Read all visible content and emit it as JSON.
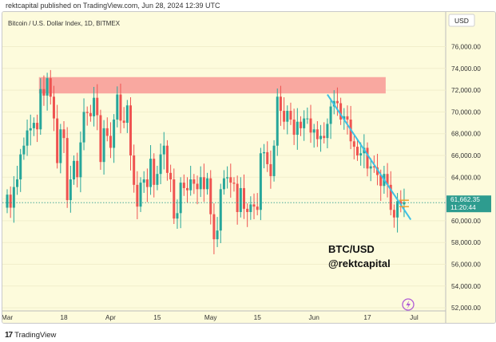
{
  "header": {
    "text": "rektcapital published on TradingView.com, Jun 28, 2024 12:39 UTC"
  },
  "chart_data": {
    "type": "candlestick",
    "title": "Bitcoin / U.S. Dollar Index, 1D, BITMEX",
    "currency_label": "USD",
    "ylim": [
      51500,
      78800
    ],
    "y_ticks": [
      52000,
      54000,
      56000,
      58000,
      60000,
      62000,
      64000,
      66000,
      68000,
      70000,
      72000,
      74000,
      76000
    ],
    "y_tick_labels": [
      "52,000.00",
      "54,000.00",
      "56,000.00",
      "58,000.00",
      "60,000.00",
      "62,000.00",
      "64,000.00",
      "66,000.00",
      "68,000.00",
      "70,000.00",
      "72,000.00",
      "74,000.00",
      "76,000.00"
    ],
    "x_ticks": [
      {
        "label": "Mar",
        "date": "2024-03-01"
      },
      {
        "label": "18",
        "date": "2024-03-18"
      },
      {
        "label": "Apr",
        "date": "2024-04-01"
      },
      {
        "label": "15",
        "date": "2024-04-15"
      },
      {
        "label": "May",
        "date": "2024-05-01"
      },
      {
        "label": "15",
        "date": "2024-05-15"
      },
      {
        "label": "Jun",
        "date": "2024-06-01"
      },
      {
        "label": "17",
        "date": "2024-06-17"
      },
      {
        "label": "Jul",
        "date": "2024-07-01"
      }
    ],
    "start_date": "2024-03-01",
    "closes": [
      62400,
      61200,
      63100,
      63800,
      66100,
      66900,
      68300,
      68500,
      69000,
      68400,
      72100,
      71500,
      73100,
      71400,
      69400,
      65300,
      68400,
      67600,
      61900,
      63800,
      65500,
      64000,
      67200,
      70000,
      69900,
      69600,
      71300,
      69700,
      65400,
      68500,
      67800,
      66700,
      69300,
      71600,
      69200,
      69000,
      70600,
      66000,
      63300,
      61300,
      63500,
      63800,
      63100,
      65700,
      63300,
      64300,
      66100,
      66900,
      64400,
      63800,
      60200,
      60700,
      63500,
      63000,
      62800,
      63800,
      63400,
      62900,
      64000,
      62900,
      63900,
      60600,
      58300,
      59100,
      62900,
      63900,
      64000,
      63500,
      63400,
      60800,
      63000,
      61100,
      60800,
      61500,
      61300,
      61000,
      66200,
      66300,
      65200,
      64100,
      66900,
      71400,
      70100,
      69100,
      70100,
      69300,
      67900,
      69100,
      68500,
      69400,
      69400,
      68100,
      68400,
      67500,
      67800,
      67600,
      68900,
      70500,
      71000,
      70800,
      69300,
      69600,
      69300,
      67300,
      66800,
      66000,
      66200,
      66700,
      64800,
      65000,
      64900,
      64200,
      63200,
      64300,
      63300,
      61000,
      60300,
      61800,
      61500,
      61700
    ],
    "opens_note": "each candle opens at the previous close",
    "resistance_zone": {
      "low": 71700,
      "high": 73200,
      "from": "2024-03-11",
      "to": "2024-06-22"
    },
    "trendline": {
      "from": {
        "date": "2024-06-05",
        "price": 71600
      },
      "to": {
        "date": "2024-06-30",
        "price": 60100
      }
    },
    "last_price": {
      "value": 61662.35,
      "label": "61,662.35",
      "countdown": "11:20:44"
    },
    "annotation": {
      "line1": "BTC/USD",
      "line2": "@rektcapital"
    },
    "colors": {
      "up": "#26a69a",
      "down": "#ef5350",
      "zone": "#f9a8a0",
      "trendline": "#3ec1e6",
      "price_line": "#2e9c8f",
      "background": "#fdfbdc"
    }
  },
  "footer": {
    "brand": "TradingView"
  }
}
